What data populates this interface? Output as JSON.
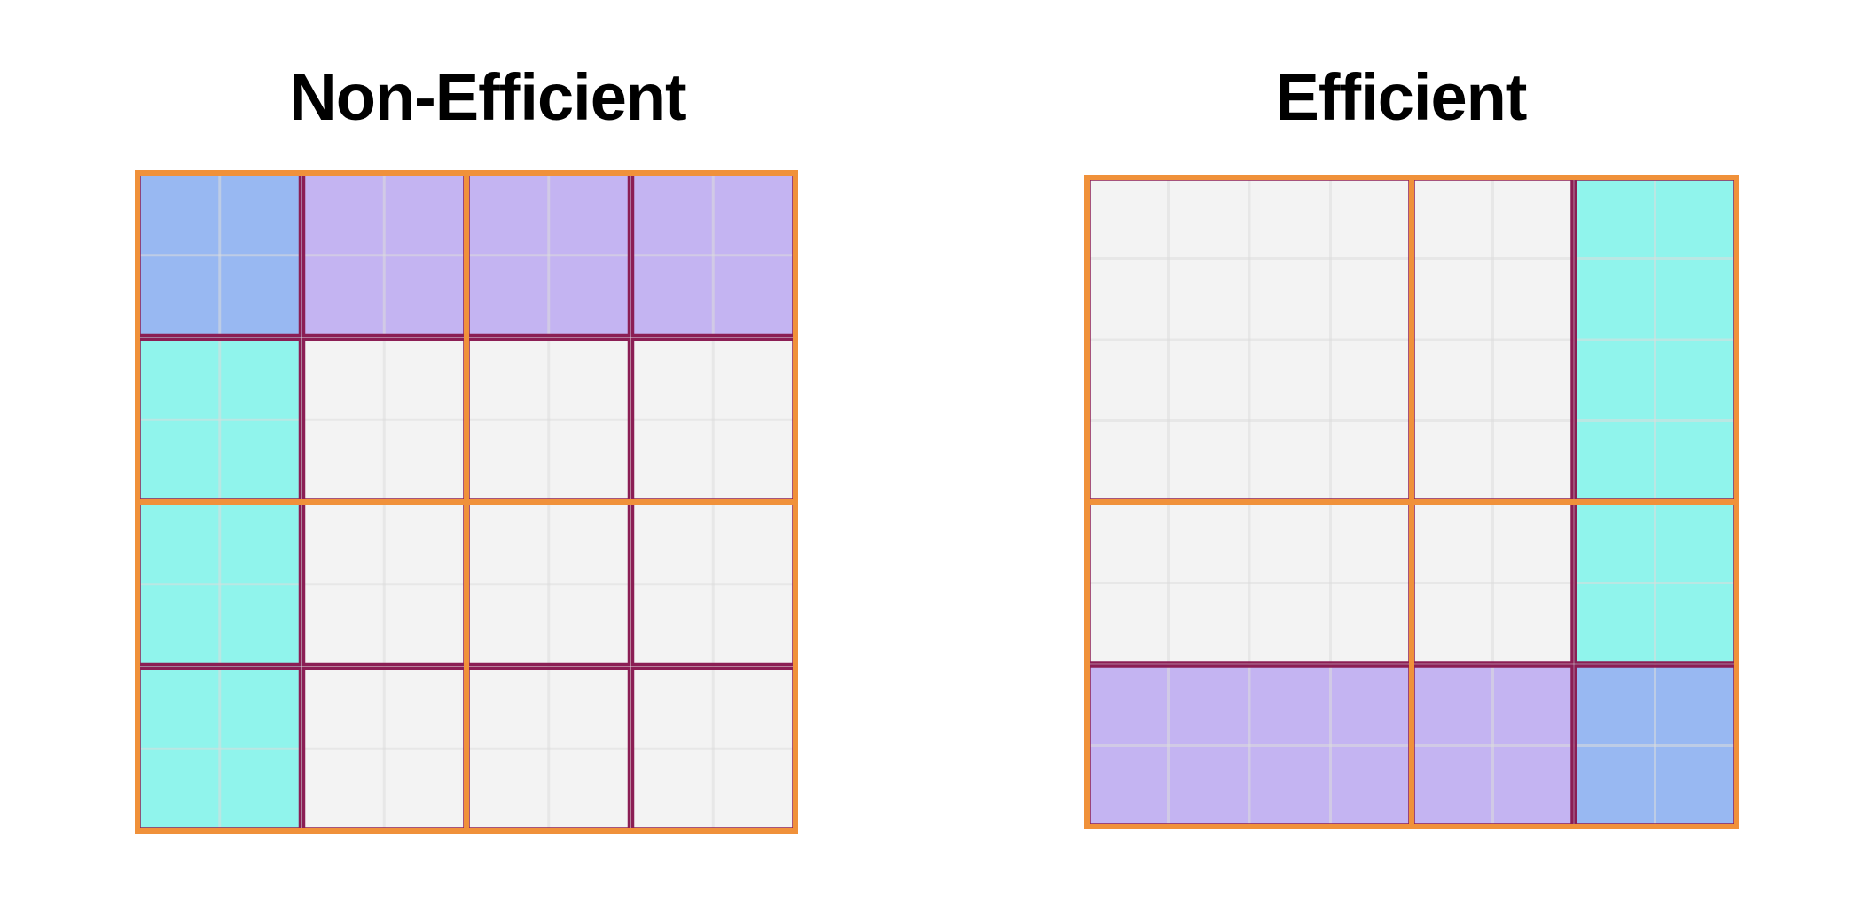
{
  "titles": {
    "left": "Non-Efficient",
    "right": "Efficient"
  },
  "colors": {
    "background": "#ffffff",
    "cell_empty": "#f3f3f3",
    "cell_line": "#dddddd",
    "blue": "#98b8f2",
    "purple": "#c4b4f2",
    "cyan": "#90f4ec",
    "tile_border": "#8b1e54",
    "block_border": "#f0913a",
    "text": "#000000"
  },
  "diagrams": {
    "left": {
      "name": "non-efficient",
      "grid_size": 8,
      "fills": [
        {
          "color": "blue",
          "col": 0,
          "row": 0,
          "w": 2,
          "h": 2
        },
        {
          "color": "purple",
          "col": 2,
          "row": 0,
          "w": 6,
          "h": 2
        },
        {
          "color": "cyan",
          "col": 0,
          "row": 2,
          "w": 2,
          "h": 6
        }
      ],
      "tiles": [
        {
          "col": 0,
          "row": 0,
          "w": 2,
          "h": 2
        },
        {
          "col": 2,
          "row": 0,
          "w": 2,
          "h": 2
        },
        {
          "col": 4,
          "row": 0,
          "w": 2,
          "h": 2
        },
        {
          "col": 6,
          "row": 0,
          "w": 2,
          "h": 2
        },
        {
          "col": 0,
          "row": 2,
          "w": 2,
          "h": 2
        },
        {
          "col": 2,
          "row": 2,
          "w": 2,
          "h": 2
        },
        {
          "col": 4,
          "row": 2,
          "w": 2,
          "h": 2
        },
        {
          "col": 6,
          "row": 2,
          "w": 2,
          "h": 2
        },
        {
          "col": 0,
          "row": 4,
          "w": 2,
          "h": 2
        },
        {
          "col": 2,
          "row": 4,
          "w": 2,
          "h": 2
        },
        {
          "col": 4,
          "row": 4,
          "w": 2,
          "h": 2
        },
        {
          "col": 6,
          "row": 4,
          "w": 2,
          "h": 2
        },
        {
          "col": 0,
          "row": 6,
          "w": 2,
          "h": 2
        },
        {
          "col": 2,
          "row": 6,
          "w": 2,
          "h": 2
        },
        {
          "col": 4,
          "row": 6,
          "w": 2,
          "h": 2
        },
        {
          "col": 6,
          "row": 6,
          "w": 2,
          "h": 2
        }
      ],
      "blocks": [
        {
          "col": 0,
          "row": 0,
          "w": 4,
          "h": 4
        },
        {
          "col": 4,
          "row": 0,
          "w": 4,
          "h": 4
        },
        {
          "col": 0,
          "row": 4,
          "w": 4,
          "h": 4
        },
        {
          "col": 4,
          "row": 4,
          "w": 4,
          "h": 4
        }
      ]
    },
    "right": {
      "name": "efficient",
      "grid_size": 8,
      "fills": [
        {
          "color": "cyan",
          "col": 6,
          "row": 0,
          "w": 2,
          "h": 6
        },
        {
          "color": "purple",
          "col": 0,
          "row": 6,
          "w": 6,
          "h": 2
        },
        {
          "color": "blue",
          "col": 6,
          "row": 6,
          "w": 2,
          "h": 2
        }
      ],
      "tiles": [
        {
          "col": 0,
          "row": 0,
          "w": 4,
          "h": 4
        },
        {
          "col": 4,
          "row": 0,
          "w": 2,
          "h": 4
        },
        {
          "col": 6,
          "row": 0,
          "w": 2,
          "h": 4
        },
        {
          "col": 0,
          "row": 4,
          "w": 4,
          "h": 2
        },
        {
          "col": 4,
          "row": 4,
          "w": 2,
          "h": 2
        },
        {
          "col": 6,
          "row": 4,
          "w": 2,
          "h": 2
        },
        {
          "col": 0,
          "row": 6,
          "w": 4,
          "h": 2
        },
        {
          "col": 4,
          "row": 6,
          "w": 2,
          "h": 2
        },
        {
          "col": 6,
          "row": 6,
          "w": 2,
          "h": 2
        }
      ],
      "blocks": [
        {
          "col": 0,
          "row": 0,
          "w": 4,
          "h": 4
        },
        {
          "col": 4,
          "row": 0,
          "w": 4,
          "h": 4
        },
        {
          "col": 0,
          "row": 4,
          "w": 4,
          "h": 4
        },
        {
          "col": 4,
          "row": 4,
          "w": 4,
          "h": 4
        }
      ]
    }
  }
}
